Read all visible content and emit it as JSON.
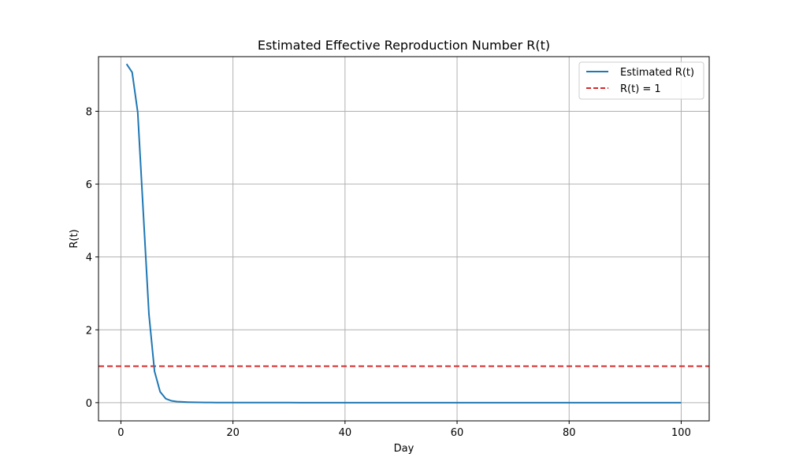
{
  "chart_data": {
    "type": "line",
    "title": "Estimated Effective Reproduction Number R(t)",
    "xlabel": "Day",
    "ylabel": "R(t)",
    "xlim": [
      -4,
      105
    ],
    "ylim": [
      -0.5,
      9.5
    ],
    "xticks": [
      0,
      20,
      40,
      60,
      80,
      100
    ],
    "yticks": [
      0,
      2,
      4,
      6,
      8
    ],
    "grid": true,
    "legend_position": "top-right",
    "series": [
      {
        "name": "Estimated R(t)",
        "color": "#1f77b4",
        "style": "solid",
        "x": [
          1,
          2,
          3,
          4,
          5,
          6,
          7,
          8,
          9,
          10,
          11,
          12,
          13,
          14,
          15,
          16,
          17,
          18,
          19,
          20,
          25,
          30,
          40,
          50,
          60,
          70,
          80,
          90,
          100
        ],
        "y": [
          9.3,
          9.07,
          7.97,
          5.2,
          2.43,
          0.86,
          0.3,
          0.11,
          0.05,
          0.03,
          0.02,
          0.015,
          0.01,
          0.008,
          0.006,
          0.005,
          0.004,
          0.003,
          0.002,
          0.002,
          0.001,
          0.001,
          0,
          0,
          0,
          0,
          0,
          0,
          0
        ]
      }
    ],
    "reference_lines": [
      {
        "name": "R(t) = 1",
        "orientation": "horizontal",
        "y": 1,
        "color": "#d62728",
        "style": "dashed"
      }
    ]
  }
}
